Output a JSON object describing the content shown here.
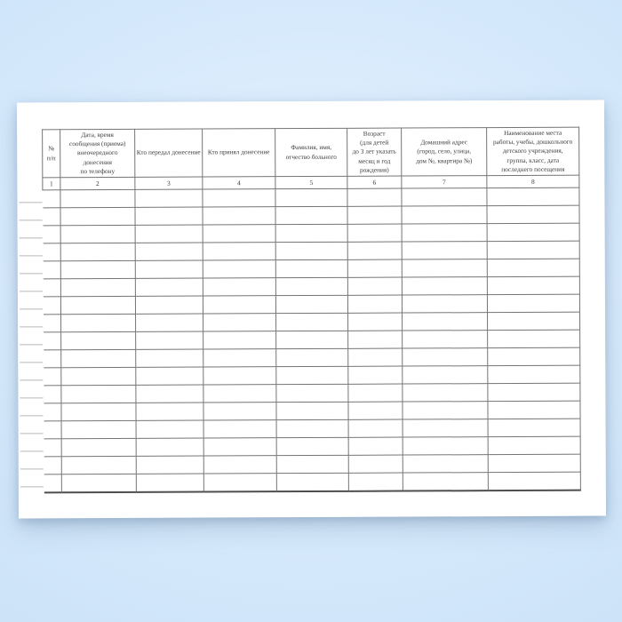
{
  "table": {
    "columns": [
      {
        "num": "1",
        "label": "№\nп/п"
      },
      {
        "num": "2",
        "label": "Дата, время\nсообщения (приема)\nвнеочередного\nдонесения\nпо телефону"
      },
      {
        "num": "3",
        "label": "Кто передал донесение"
      },
      {
        "num": "4",
        "label": "Кто принял донесение"
      },
      {
        "num": "5",
        "label": "Фамилия, имя,\nотчество больного"
      },
      {
        "num": "6",
        "label": "Возраст\n(для детей\nдо 3 лет указать\nмесяц и год\nрождения)"
      },
      {
        "num": "7",
        "label": "Домашний адрес\n(город, село, улица,\nдом №, квартира №)"
      },
      {
        "num": "8",
        "label": "Наименование места\nработы, учебы, дошкольного\nдетского учреждения,\nгруппа, класс, дата\nпоследнего посещения"
      }
    ],
    "empty_row_count": 17
  },
  "colors": {
    "background_outer": "#cbe2f8",
    "background_inner": "#e9f4fe",
    "page_background": "#ffffff",
    "table_line": "#757575",
    "table_bottom_line": "#4e4e4e",
    "show_through_line": "#a0a0a0",
    "text": "#403d3b"
  }
}
